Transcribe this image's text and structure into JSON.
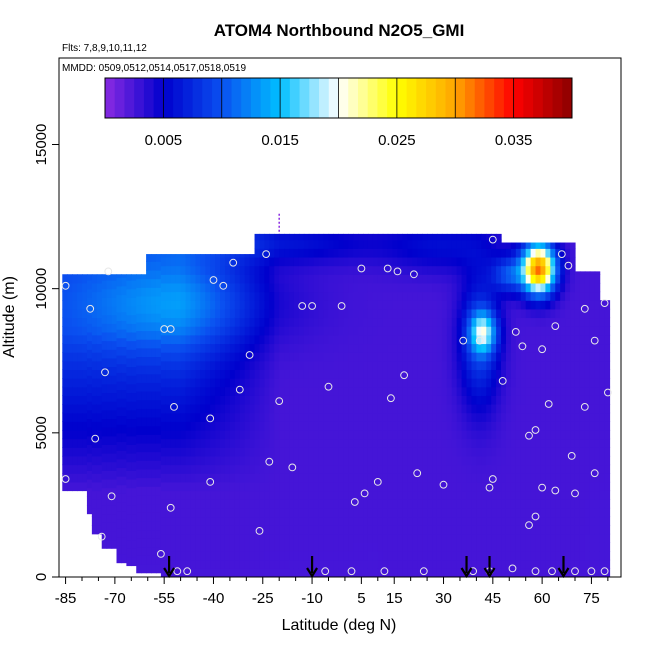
{
  "chart_data": {
    "type": "heatmap",
    "title": "ATOM4 Northbound N2O5_GMI",
    "annotations": [
      "Flts: 7,8,9,10,11,12",
      "MMDD: 0509,0512,0514,0517,0518,0519"
    ],
    "xlabel": "Latitude (deg N)",
    "ylabel": "Altitude (m)",
    "xlim": [
      -87,
      84
    ],
    "ylim": [
      0,
      18000
    ],
    "x_ticks": [
      -85,
      -70,
      -55,
      -40,
      -25,
      -10,
      5,
      15,
      30,
      45,
      60,
      75
    ],
    "x_tick_labels": [
      "-85",
      "-70",
      "-55",
      "-40",
      "-25",
      "-10",
      "5",
      "15",
      "30",
      "45",
      "60",
      "75"
    ],
    "y_ticks": [
      0,
      5000,
      10000,
      15000
    ],
    "y_tick_labels": [
      "0",
      "5000",
      "10000",
      "15000"
    ],
    "colorbar": {
      "vmin": 0.0,
      "vmax": 0.04,
      "ticks": [
        0.005,
        0.015,
        0.025,
        0.035
      ],
      "tick_labels": [
        "0.005",
        "0.015",
        "0.025",
        "0.035"
      ],
      "colors": [
        "#8a2be2",
        "#0000cd",
        "#0a50f0",
        "#00bfff",
        "#ffffff",
        "#ffff00",
        "#ffa500",
        "#ff0000",
        "#8b0000"
      ]
    },
    "arrows_x": [
      -53.5,
      -10,
      37,
      44,
      66.5
    ],
    "observations": [
      [
        -85,
        10100
      ],
      [
        -77.5,
        9300
      ],
      [
        -72,
        10600
      ],
      [
        -76,
        4800
      ],
      [
        -73,
        7100
      ],
      [
        -85,
        3400
      ],
      [
        -71,
        2800
      ],
      [
        -74,
        1400
      ],
      [
        -55,
        8600
      ],
      [
        -53,
        8600
      ],
      [
        -52,
        5900
      ],
      [
        -53,
        2400
      ],
      [
        -56,
        800
      ],
      [
        -51,
        200
      ],
      [
        -48,
        200
      ],
      [
        -41,
        5500
      ],
      [
        -41,
        3300
      ],
      [
        -37,
        10100
      ],
      [
        -40,
        10300
      ],
      [
        -34,
        10900
      ],
      [
        -24,
        11200
      ],
      [
        -29,
        7700
      ],
      [
        -32,
        6500
      ],
      [
        -23,
        4000
      ],
      [
        -26,
        1600
      ],
      [
        -20,
        6100
      ],
      [
        -16,
        3800
      ],
      [
        -10,
        9400
      ],
      [
        -13,
        9400
      ],
      [
        -5,
        6600
      ],
      [
        -1,
        9400
      ],
      [
        -6,
        200
      ],
      [
        2,
        200
      ],
      [
        6,
        2900
      ],
      [
        3,
        2600
      ],
      [
        10,
        3300
      ],
      [
        5,
        10700
      ],
      [
        13,
        10700
      ],
      [
        16,
        10600
      ],
      [
        21,
        10500
      ],
      [
        14,
        6200
      ],
      [
        18,
        7000
      ],
      [
        22,
        3600
      ],
      [
        24,
        200
      ],
      [
        12,
        200
      ],
      [
        30,
        3200
      ],
      [
        36,
        8200
      ],
      [
        41,
        8200
      ],
      [
        45,
        3400
      ],
      [
        44,
        3100
      ],
      [
        45,
        11700
      ],
      [
        48,
        6800
      ],
      [
        52,
        8500
      ],
      [
        54,
        8000
      ],
      [
        56,
        4900
      ],
      [
        58,
        5100
      ],
      [
        56,
        1800
      ],
      [
        60,
        3100
      ],
      [
        58,
        2100
      ],
      [
        60,
        7900
      ],
      [
        62,
        6000
      ],
      [
        64,
        3000
      ],
      [
        64,
        8700
      ],
      [
        66,
        11200
      ],
      [
        68,
        10800
      ],
      [
        69,
        4200
      ],
      [
        70,
        2900
      ],
      [
        73,
        9300
      ],
      [
        73,
        5900
      ],
      [
        76,
        3600
      ],
      [
        76,
        8200
      ],
      [
        79,
        9500
      ],
      [
        80,
        6400
      ],
      [
        58,
        200
      ],
      [
        63,
        200
      ],
      [
        70,
        200
      ],
      [
        75,
        200
      ],
      [
        79,
        200
      ],
      [
        44,
        200
      ],
      [
        39,
        200
      ],
      [
        51,
        300
      ]
    ]
  }
}
